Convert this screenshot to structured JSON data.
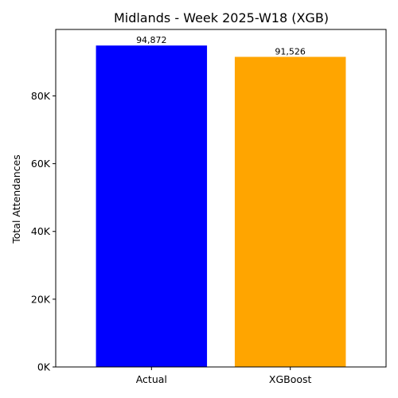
{
  "chart_data": {
    "type": "bar",
    "title": "Midlands - Week 2025-W18 (XGB)",
    "xlabel": "",
    "ylabel": "Total Attendances",
    "categories": [
      "Actual",
      "XGBoost"
    ],
    "values": [
      94872,
      91526
    ],
    "data_labels": [
      "94,872",
      "91,526"
    ],
    "colors": [
      "#0000ff",
      "#ffa500"
    ],
    "ylim": [
      0,
      99616
    ],
    "yticks": [
      0,
      20000,
      40000,
      60000,
      80000
    ],
    "ytick_labels": [
      "0K",
      "20K",
      "40K",
      "60K",
      "80K"
    ],
    "grid": false,
    "legend": "none"
  }
}
